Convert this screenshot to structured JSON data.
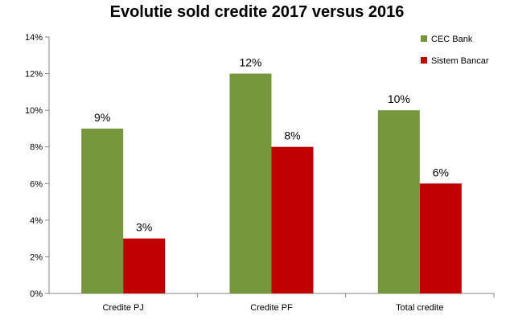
{
  "chart_data": {
    "type": "bar",
    "title": "Evolutie sold credite 2017 versus 2016",
    "xlabel": "",
    "ylabel": "",
    "categories": [
      "Credite PJ",
      "Credite PF",
      "Total credite"
    ],
    "series": [
      {
        "name": "CEC Bank",
        "values": [
          9,
          12,
          10
        ],
        "labels": [
          "9%",
          "12%",
          "10%"
        ],
        "color": "#77973D"
      },
      {
        "name": "Sistem Bancar",
        "values": [
          3,
          8,
          6
        ],
        "labels": [
          "3%",
          "8%",
          "6%"
        ],
        "color": "#C00000"
      }
    ],
    "ylim": [
      0,
      14
    ],
    "yticks": [
      0,
      2,
      4,
      6,
      8,
      10,
      12,
      14
    ],
    "ytick_labels": [
      "0%",
      "2%",
      "4%",
      "6%",
      "8%",
      "10%",
      "12%",
      "14%"
    ],
    "grid": false,
    "legend_position": "top-right"
  }
}
